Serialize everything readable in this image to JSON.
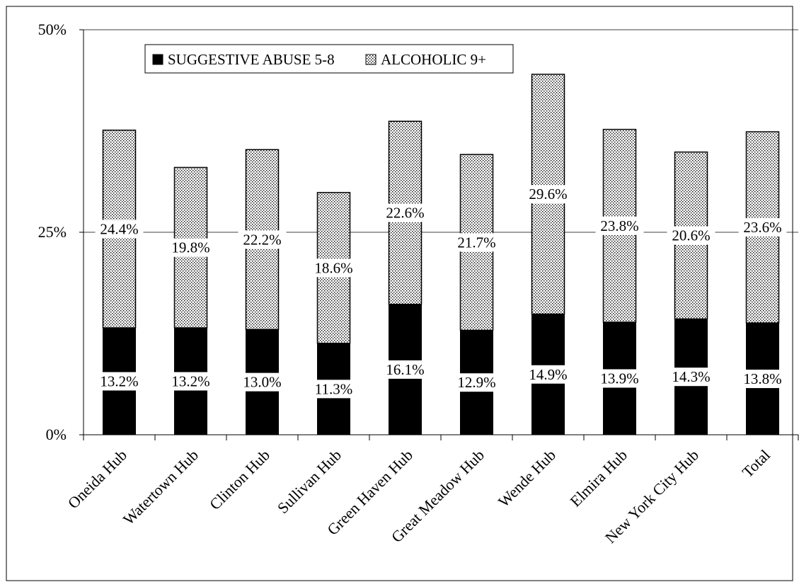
{
  "chart_data": {
    "type": "bar",
    "stacked": true,
    "categories": [
      "Oneida Hub",
      "Watertown Hub",
      "Clinton Hub",
      "Sullivan Hub",
      "Green Haven Hub",
      "Great Meadow Hub",
      "Wende Hub",
      "Elmira Hub",
      "New York City Hub",
      "Total"
    ],
    "series": [
      {
        "name": "SUGGESTIVE ABUSE 5-8",
        "values": [
          13.2,
          13.2,
          13.0,
          11.3,
          16.1,
          12.9,
          14.9,
          13.9,
          14.3,
          13.8
        ],
        "labels": [
          "13.2%",
          "13.2%",
          "13.0%",
          "11.3%",
          "16.1%",
          "12.9%",
          "14.9%",
          "13.9%",
          "14.3%",
          "13.8%"
        ],
        "color": "#000000",
        "pattern": "solid"
      },
      {
        "name": "ALCOHOLIC 9+",
        "values": [
          24.4,
          19.8,
          22.2,
          18.6,
          22.6,
          21.7,
          29.6,
          23.8,
          20.6,
          23.6
        ],
        "labels": [
          "24.4%",
          "19.8%",
          "22.2%",
          "18.6%",
          "22.6%",
          "21.7%",
          "29.6%",
          "23.8%",
          "20.6%",
          "23.6%"
        ],
        "color": "#ffffff",
        "pattern": "dotted"
      }
    ],
    "ylim": [
      0,
      50
    ],
    "yticks": [
      0,
      25,
      50
    ],
    "ytick_labels": [
      "0%",
      "25%",
      "50%"
    ],
    "grid": true,
    "legend_position": "top-left"
  }
}
